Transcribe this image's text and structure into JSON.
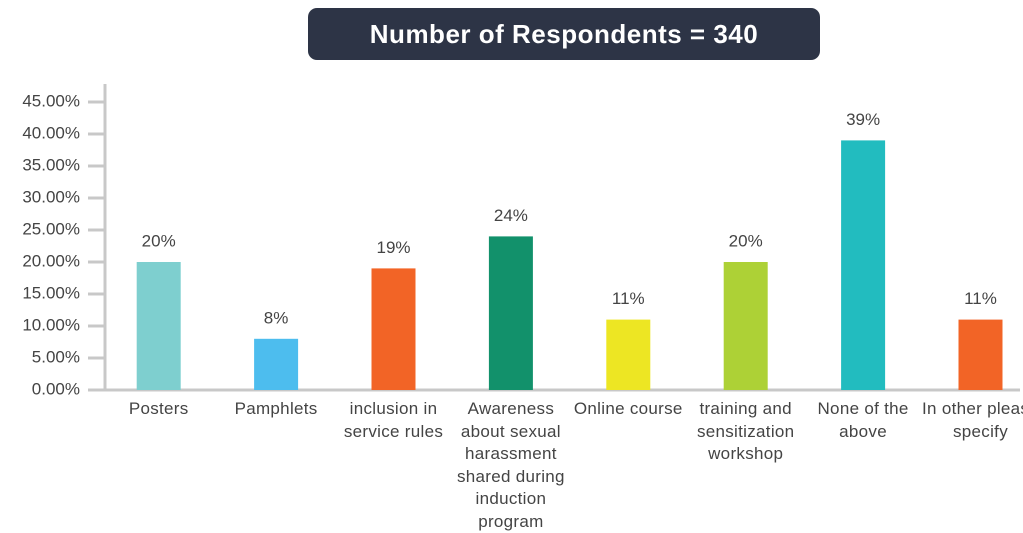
{
  "chart_data": {
    "type": "bar",
    "title": "Number of Respondents = 340",
    "categories": [
      "Posters",
      "Pamphlets",
      "inclusion in service rules",
      "Awareness about sexual harassment shared during induction program",
      "Online course",
      "training and sensitization workshop",
      "None of the above",
      "In other please specify"
    ],
    "values": [
      20,
      8,
      19,
      24,
      11,
      20,
      39,
      11
    ],
    "value_labels": [
      "20%",
      "8%",
      "19%",
      "24%",
      "11%",
      "20%",
      "39%",
      "11%"
    ],
    "colors": [
      "#7ecfcf",
      "#4dbdee",
      "#f26426",
      "#12916b",
      "#ede623",
      "#add136",
      "#22bcbf",
      "#f26426"
    ],
    "ylim": [
      0,
      45
    ],
    "yticks": [
      {
        "value": 0,
        "label": "0.00%"
      },
      {
        "value": 5,
        "label": "5.00%"
      },
      {
        "value": 10,
        "label": "10.00%"
      },
      {
        "value": 15,
        "label": "15.00%"
      },
      {
        "value": 20,
        "label": "20.00%"
      },
      {
        "value": 25,
        "label": "25.00%"
      },
      {
        "value": 30,
        "label": "30.00%"
      },
      {
        "value": 35,
        "label": "35.00%"
      },
      {
        "value": 40,
        "label": "40.00%"
      },
      {
        "value": 45,
        "label": "45.00%"
      }
    ]
  }
}
